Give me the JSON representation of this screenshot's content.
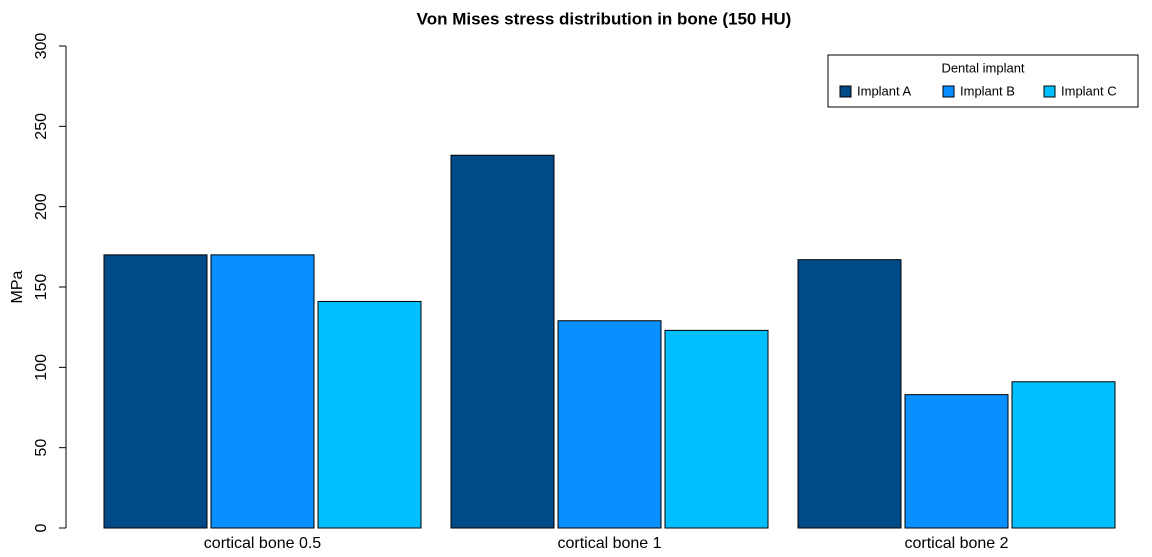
{
  "chart_data": {
    "type": "bar",
    "title": "Von Mises stress distribution in bone (150 HU)",
    "y_label": "MPa",
    "categories": [
      "cortical bone 0.5",
      "cortical bone 1",
      "cortical bone 2"
    ],
    "legend_title": "Dental implant",
    "legend_position": "top-right",
    "series": [
      {
        "name": "Implant A",
        "color": "#004a87",
        "values": [
          170,
          232,
          167
        ]
      },
      {
        "name": "Implant B",
        "color": "#0a8fff",
        "values": [
          170,
          129,
          83
        ]
      },
      {
        "name": "Implant C",
        "color": "#00bfff",
        "values": [
          141,
          123,
          91
        ]
      }
    ],
    "ylim": [
      0,
      300
    ],
    "yticks": [
      0,
      50,
      100,
      150,
      200,
      250,
      300
    ]
  }
}
